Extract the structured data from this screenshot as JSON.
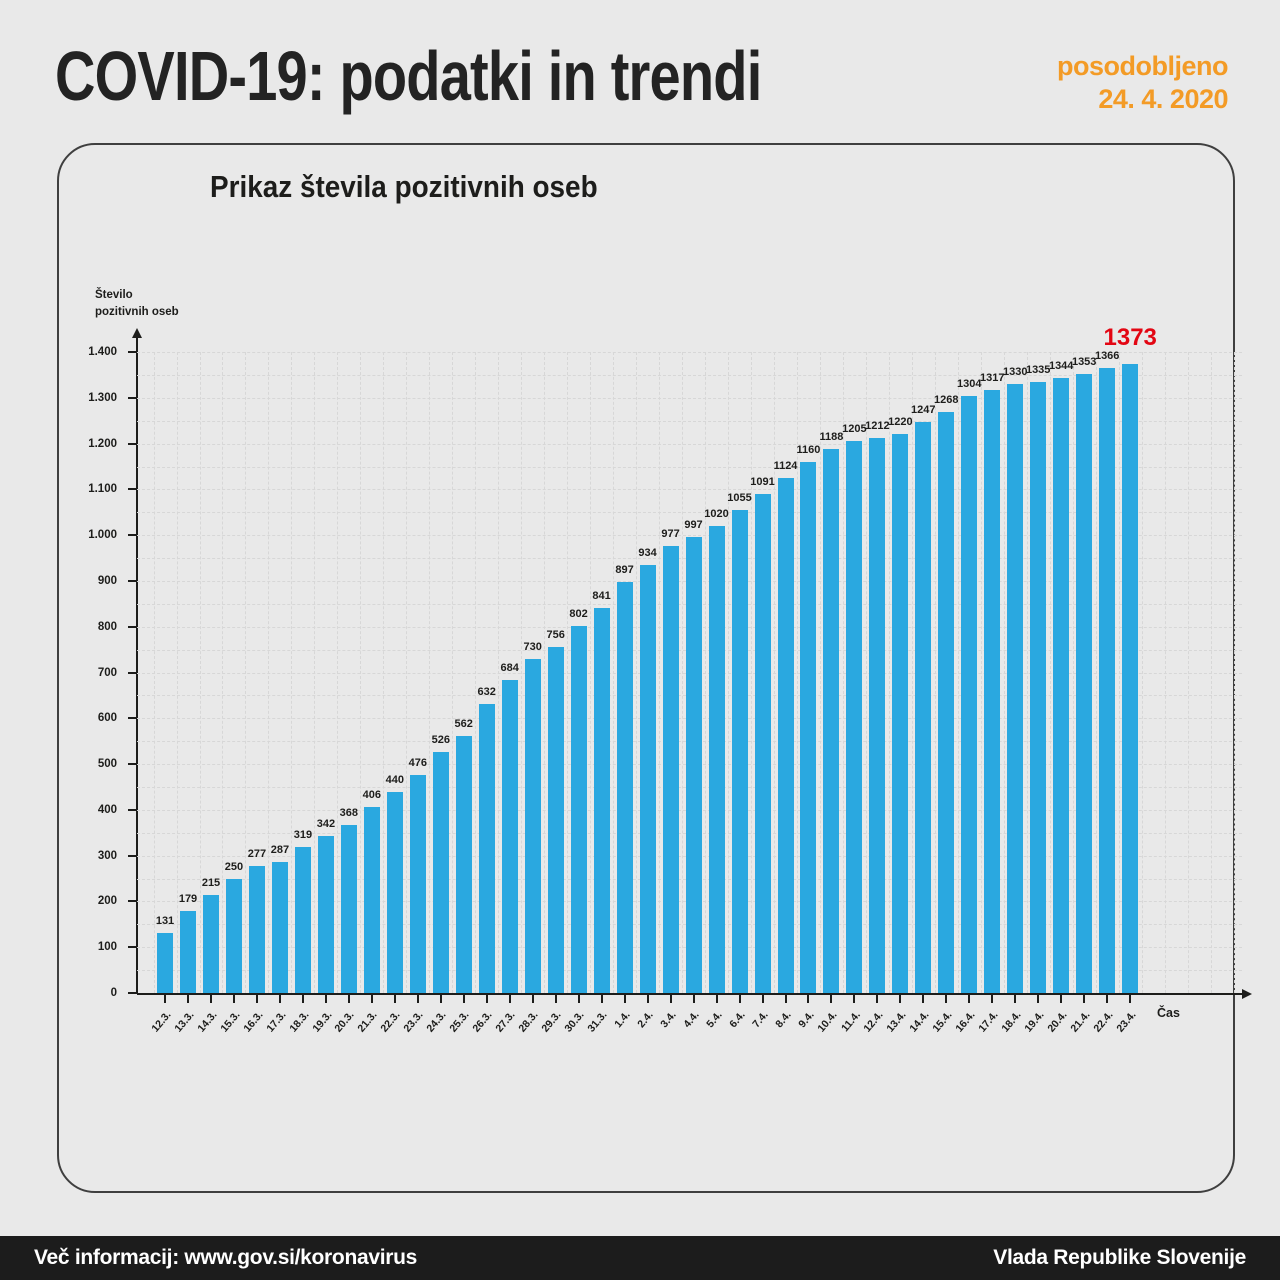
{
  "header": {
    "title": "COVID-19: podatki in trendi",
    "updated_label": "posodobljeno",
    "updated_date": "24. 4. 2020"
  },
  "chart_data": {
    "type": "bar",
    "title": "Prikaz števila pozitivnih oseb",
    "xlabel": "Čas",
    "ylabel": "Število pozitivnih oseb",
    "ylabel_lines": [
      "Število",
      "pozitivnih oseb"
    ],
    "ylim": [
      0,
      1400
    ],
    "y_tick_step": 100,
    "y_tick_labels": [
      "0",
      "100",
      "200",
      "300",
      "400",
      "500",
      "600",
      "700",
      "800",
      "900",
      "1.000",
      "1.100",
      "1.200",
      "1.300",
      "1.400"
    ],
    "grid": "dashed",
    "legend": "none",
    "bar_color": "#2aa8e0",
    "label_color": "#1d1d1b",
    "highlight_last_value_color": "#e30613",
    "categories": [
      "12.3.",
      "13.3.",
      "14.3.",
      "15.3.",
      "16.3.",
      "17.3.",
      "18.3.",
      "19.3.",
      "20.3.",
      "21.3.",
      "22.3.",
      "23.3.",
      "24.3.",
      "25.3.",
      "26.3.",
      "27.3.",
      "28.3.",
      "29.3.",
      "30.3.",
      "31.3.",
      "1.4.",
      "2.4.",
      "3.4.",
      "4.4.",
      "5.4.",
      "6.4.",
      "7.4.",
      "8.4.",
      "9.4.",
      "10.4.",
      "11.4.",
      "12.4.",
      "13.4.",
      "14.4.",
      "15.4.",
      "16.4.",
      "17.4.",
      "18.4.",
      "19.4.",
      "20.4.",
      "21.4.",
      "22.4.",
      "23.4."
    ],
    "values": [
      131,
      179,
      215,
      250,
      277,
      287,
      319,
      342,
      368,
      406,
      440,
      476,
      526,
      562,
      632,
      684,
      730,
      756,
      802,
      841,
      897,
      934,
      977,
      997,
      1020,
      1055,
      1091,
      1124,
      1160,
      1188,
      1205,
      1212,
      1220,
      1247,
      1268,
      1304,
      1317,
      1330,
      1335,
      1344,
      1353,
      1366,
      1373
    ]
  },
  "footer": {
    "left": "Več informacij: www.gov.si/koronavirus",
    "right": "Vlada Republike Slovenije"
  },
  "colors": {
    "background": "#e9e9e9",
    "accent_orange": "#f39b26",
    "bar_blue": "#2aa8e0",
    "highlight_red": "#e30613",
    "footer_black": "#1c1c1c"
  }
}
